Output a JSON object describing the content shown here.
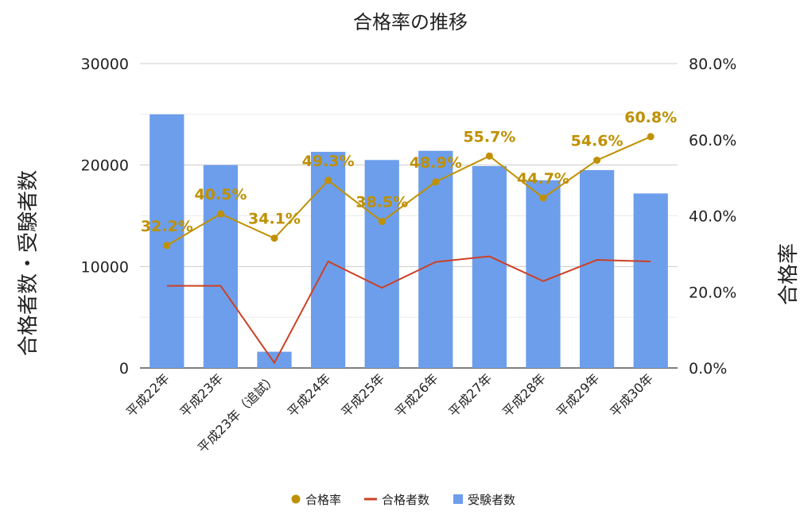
{
  "chart_data": {
    "type": "bar",
    "title": "合格率の推移",
    "categories": [
      "平成22年",
      "平成23年",
      "平成23年（追試）",
      "平成24年",
      "平成25年",
      "平成26年",
      "平成27年",
      "平成28年",
      "平成29年",
      "平成30年"
    ],
    "ylabel": "合格者数・受験者数",
    "y2label": "合格率",
    "ylim": [
      0,
      30000
    ],
    "y2lim": [
      0,
      80
    ],
    "yticks": [
      "0",
      "10000",
      "20000",
      "30000"
    ],
    "y2ticks": [
      "0.0%",
      "20.0%",
      "40.0%",
      "60.0%",
      "80.0%"
    ],
    "grid": true,
    "legend_position": "bottom",
    "series": [
      {
        "name": "受験者数",
        "type": "bar",
        "color": "#6d9eeb",
        "axis": "left",
        "values": [
          25000,
          20000,
          1600,
          21300,
          20500,
          21400,
          19900,
          18500,
          19500,
          17200
        ]
      },
      {
        "name": "合格者数",
        "type": "line",
        "color": "#cc4125",
        "axis": "left",
        "values": [
          8100,
          8100,
          500,
          10500,
          7900,
          10450,
          11000,
          8550,
          10650,
          10500
        ]
      },
      {
        "name": "合格率",
        "type": "line",
        "color": "#bf9000",
        "axis": "right",
        "markers": true,
        "values": [
          32.2,
          40.5,
          34.1,
          49.3,
          38.5,
          48.9,
          55.7,
          44.7,
          54.6,
          60.8
        ],
        "labels": [
          "32.2%",
          "40.5%",
          "34.1%",
          "49.3%",
          "38.5%",
          "48.9%",
          "55.7%",
          "44.7%",
          "54.6%",
          "60.8%"
        ]
      }
    ],
    "legend": [
      "合格率",
      "合格者数",
      "受験者数"
    ]
  }
}
